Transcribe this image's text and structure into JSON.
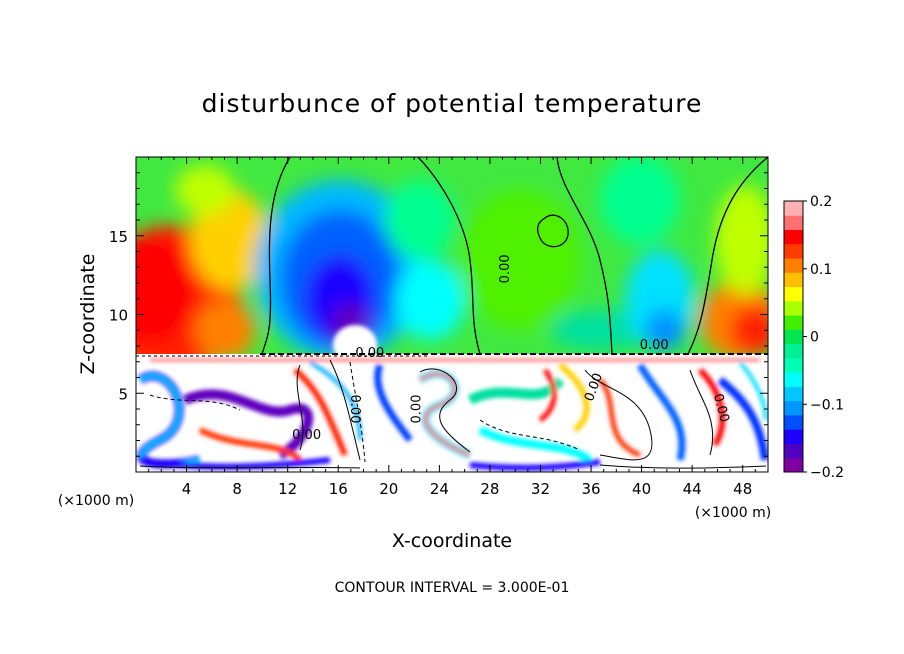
{
  "chart_data": {
    "type": "heatmap",
    "title": "disturbunce of potential temperature",
    "xlabel": "X-coordinate",
    "ylabel": "Z-coordinate",
    "x_unit_label": "(×1000 m)",
    "x_unit_label_right": "(×1000 m)",
    "xlim": [
      0,
      50
    ],
    "ylim": [
      0,
      20
    ],
    "x_ticks": [
      4,
      8,
      12,
      16,
      20,
      24,
      28,
      32,
      36,
      40,
      44,
      48
    ],
    "y_ticks": [
      5,
      10,
      15
    ],
    "colorbar": {
      "range": [
        -0.2,
        0.2
      ],
      "ticks": [
        {
          "value": 0.2,
          "label": "0.2"
        },
        {
          "value": 0.1,
          "label": "0.1"
        },
        {
          "value": 0,
          "label": "0"
        },
        {
          "value": -0.1,
          "label": "−0.1"
        },
        {
          "value": -0.2,
          "label": "−0.2"
        }
      ],
      "colors": [
        "#8000a0",
        "#5000c0",
        "#1e00ff",
        "#0050ff",
        "#0096ff",
        "#00c8ff",
        "#00ffff",
        "#00ffb4",
        "#00f096",
        "#00e650",
        "#40f000",
        "#aaff00",
        "#ffff00",
        "#ffc000",
        "#ff8000",
        "#ff3c00",
        "#ff0000",
        "#ff7070",
        "#ffb0b0"
      ]
    },
    "contour_labels": [
      {
        "text": "0.00",
        "x": 29.5,
        "z": 12.9,
        "rotate": -90
      },
      {
        "text": "0.00",
        "x": 18.5,
        "z": 7.3,
        "rotate": 0
      },
      {
        "text": "0.00",
        "x": 41.0,
        "z": 7.8,
        "rotate": 0
      },
      {
        "text": "0.00",
        "x": 13.5,
        "z": 2.1,
        "rotate": 0
      },
      {
        "text": "0.00",
        "x": 17.0,
        "z": 4.0,
        "rotate": 90
      },
      {
        "text": "0.00",
        "x": 22.5,
        "z": 4.0,
        "rotate": -90
      },
      {
        "text": "0.00",
        "x": 36.5,
        "z": 5.3,
        "rotate": -70
      },
      {
        "text": "0.00",
        "x": 46.0,
        "z": 4.0,
        "rotate": 75
      }
    ],
    "grid": false
  },
  "footer": {
    "contour_interval": "CONTOUR INTERVAL = 3.000E-01"
  }
}
